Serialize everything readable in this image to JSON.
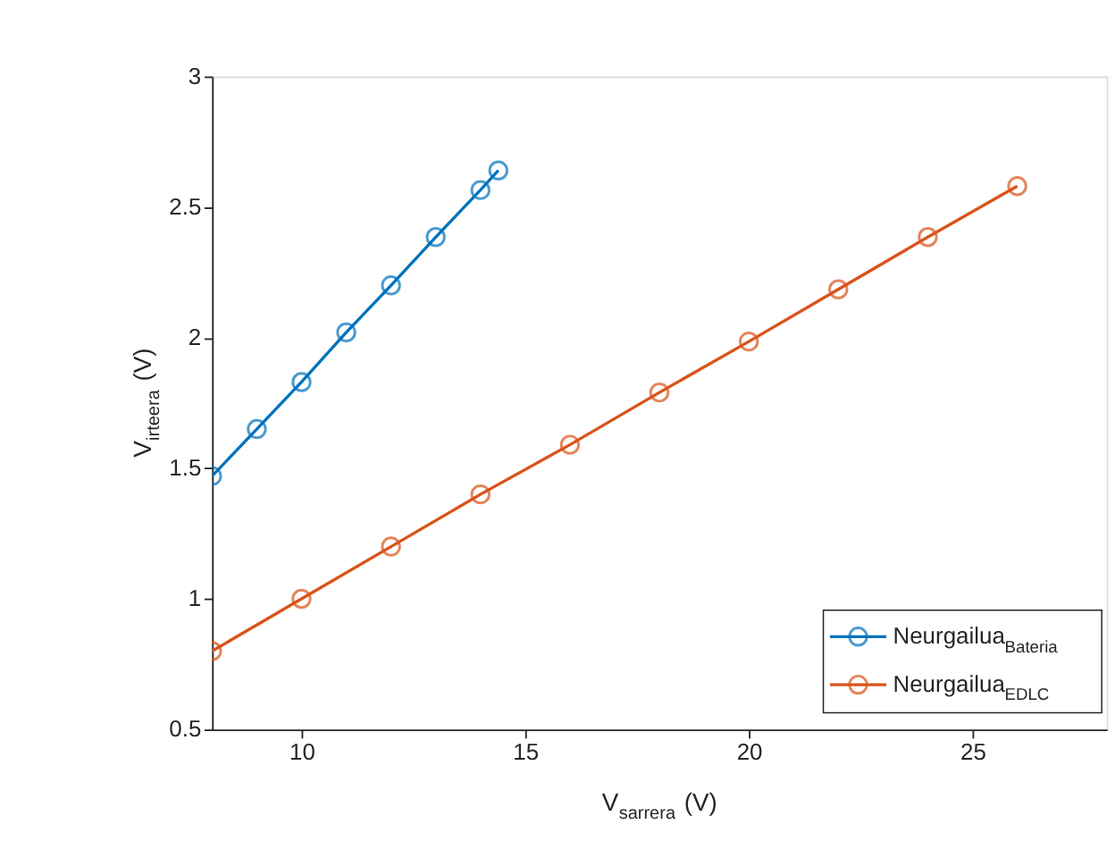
{
  "chart_data": {
    "type": "line",
    "xlabel": "V$_{sarrera}$ (V)",
    "ylabel": "V$_{irteera}$ (V)",
    "xlim": [
      8,
      28
    ],
    "xticks": [
      10,
      15,
      20,
      25
    ],
    "ylim": [
      0.5,
      3
    ],
    "yticks": [
      0.5,
      1,
      1.5,
      2,
      2.5,
      3
    ],
    "grid": false,
    "legend": "bottom right",
    "marker": "circle",
    "line_style": "solid",
    "series": [
      {
        "name": "Neurgailua$_{Bateria}$",
        "color": "#0072bd",
        "x": [
          8,
          9,
          10,
          11,
          12,
          13,
          14,
          14.4
        ],
        "values": [
          1.47,
          1.65,
          1.83,
          2.02,
          2.2,
          2.385,
          2.565,
          2.64
        ]
      },
      {
        "name": "Neurgailua$_{EDLC}$",
        "color": "#d95319",
        "x": [
          8,
          10,
          12,
          14,
          16,
          18,
          20,
          22,
          24,
          26
        ],
        "values": [
          0.8,
          1.0,
          1.2,
          1.4,
          1.59,
          1.79,
          1.985,
          2.185,
          2.385,
          2.58
        ]
      }
    ]
  }
}
